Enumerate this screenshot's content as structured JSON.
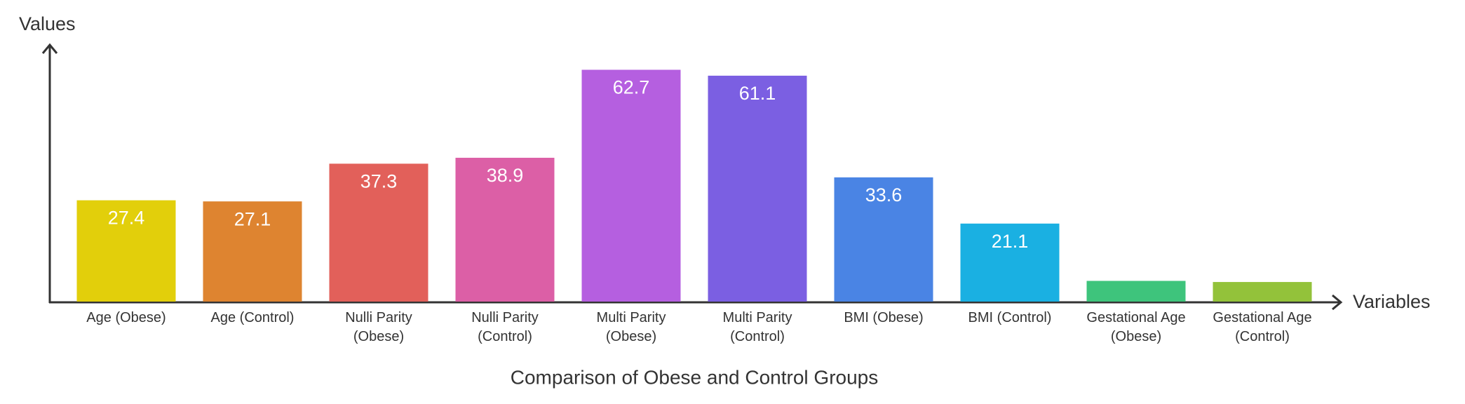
{
  "chart_data": {
    "type": "bar",
    "title": "Comparison of Obese and Control Groups",
    "x_label": "Variables",
    "y_label": "Values",
    "categories": [
      "Age (Obese)",
      "Age (Control)",
      "Nulli Parity (Obese)",
      "Nulli Parity (Control)",
      "Multi Parity (Obese)",
      "Multi Parity (Control)",
      "BMI (Obese)",
      "BMI (Control)",
      "Gestational Age (Obese)",
      "Gestational Age (Control)"
    ],
    "values": [
      27.4,
      27.1,
      37.3,
      38.9,
      62.7,
      61.1,
      33.6,
      21.1,
      5.6,
      5.3
    ],
    "colors": [
      "#e2cf0b",
      "#de8430",
      "#e2605a",
      "#dc5fa6",
      "#b55fe0",
      "#7b5fe2",
      "#4a84e4",
      "#1ab0e2",
      "#3ec47c",
      "#93c23a"
    ],
    "ylim": [
      0,
      70
    ]
  }
}
